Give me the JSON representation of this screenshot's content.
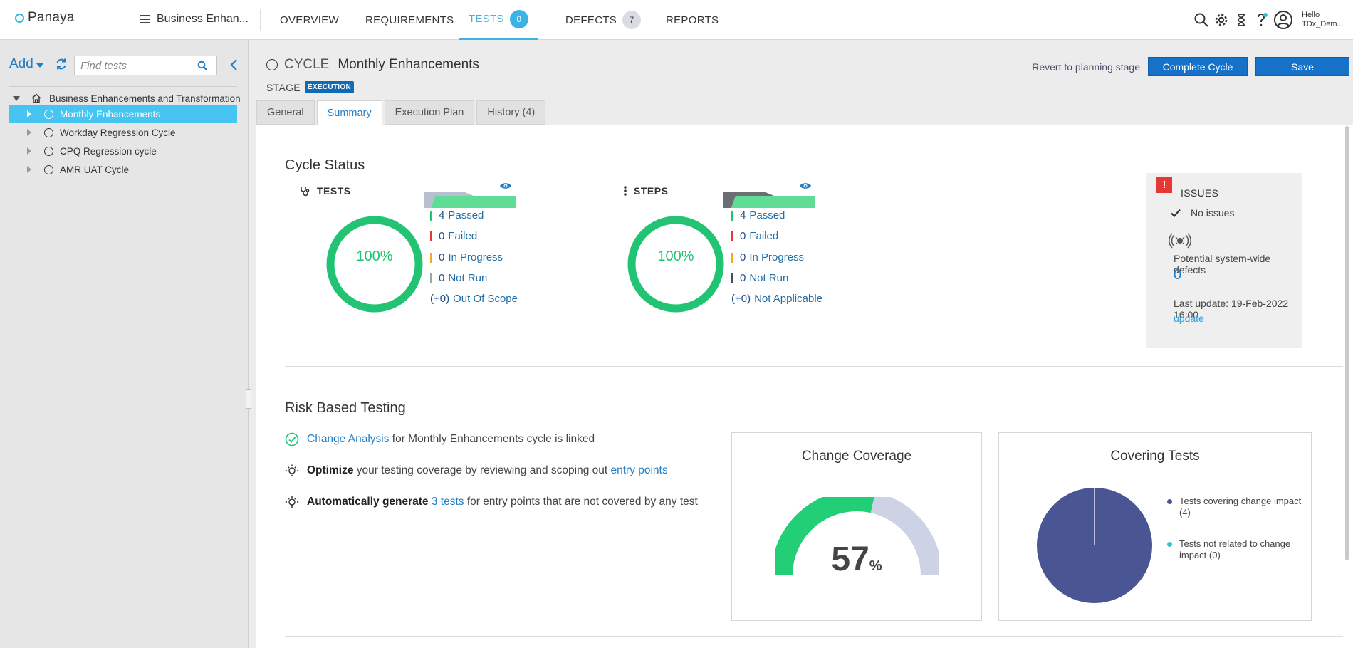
{
  "app": {
    "logo": "Panaya",
    "project": "Business Enhan..."
  },
  "nav": {
    "overview": "OVERVIEW",
    "requirements": "REQUIREMENTS",
    "tests": "TESTS",
    "tests_count": "0",
    "defects": "DEFECTS",
    "defects_count": "7",
    "reports": "REPORTS"
  },
  "user": {
    "hello": "Hello",
    "name": "TDx_Dem..."
  },
  "sidebar": {
    "add_label": "Add",
    "search_placeholder": "Find tests",
    "root": "Business Enhancements and Transformation",
    "items": [
      {
        "label": "Monthly Enhancements",
        "selected": true
      },
      {
        "label": "Workday Regression Cycle",
        "selected": false
      },
      {
        "label": "CPQ Regression cycle",
        "selected": false
      },
      {
        "label": "AMR UAT Cycle",
        "selected": false
      }
    ]
  },
  "header": {
    "cycle_label": "CYCLE",
    "cycle_name": "Monthly Enhancements",
    "stage_label": "STAGE",
    "stage_value": "EXECUTION",
    "revert_label": "Revert to planning stage",
    "complete_label": "Complete Cycle",
    "save_label": "Save",
    "tabs": [
      "General",
      "Summary",
      "Execution Plan",
      "History (4)"
    ],
    "active_tab": "Summary"
  },
  "cycle_status": {
    "title": "Cycle Status",
    "tests": {
      "label": "TESTS",
      "percent": "100%",
      "passed_n": "4",
      "passed": "Passed",
      "failed_n": "0",
      "failed": "Failed",
      "inprogress_n": "0",
      "inprogress": "In Progress",
      "notrun_n": "0",
      "notrun": "Not Run",
      "extra_n": "(+0)",
      "extra": "Out Of Scope"
    },
    "steps": {
      "label": "STEPS",
      "percent": "100%",
      "passed_n": "4",
      "passed": "Passed",
      "failed_n": "0",
      "failed": "Failed",
      "inprogress_n": "0",
      "inprogress": "In Progress",
      "notrun_n": "0",
      "notrun": "Not Run",
      "extra_n": "(+0)",
      "extra": "Not Applicable"
    }
  },
  "issues": {
    "title": "ISSUES",
    "no_issues": "No issues",
    "potential_label": "Potential system-wide defects",
    "potential_count": "0",
    "last_update": "Last update: 19-Feb-2022 16:00",
    "update_link": "update"
  },
  "risk": {
    "title": "Risk Based Testing",
    "line1_link": "Change Analysis",
    "line1_text": " for Monthly Enhancements cycle is linked",
    "line2_bold": "Optimize",
    "line2_text": " your testing coverage by reviewing and scoping out ",
    "line2_link": "entry points",
    "line3_bold": "Automatically generate",
    "line3_link": "3 tests",
    "line3_text": " for entry points that are not covered by any test"
  },
  "change_coverage": {
    "title": "Change Coverage",
    "value": "57",
    "unit": "%",
    "fraction": 0.57
  },
  "covering_tests": {
    "title": "Covering Tests",
    "legend": [
      {
        "label": "Tests covering change impact (4)",
        "color": "#4a5593",
        "value": 4
      },
      {
        "label": "Tests not related to change impact (0)",
        "color": "#2ec3d5",
        "value": 0
      }
    ]
  },
  "colors": {
    "accent": "#3bb4e5",
    "passed": "#22c474",
    "failed": "#e53935",
    "inprogress": "#f5a623",
    "notrun": "#9aa4b5"
  }
}
